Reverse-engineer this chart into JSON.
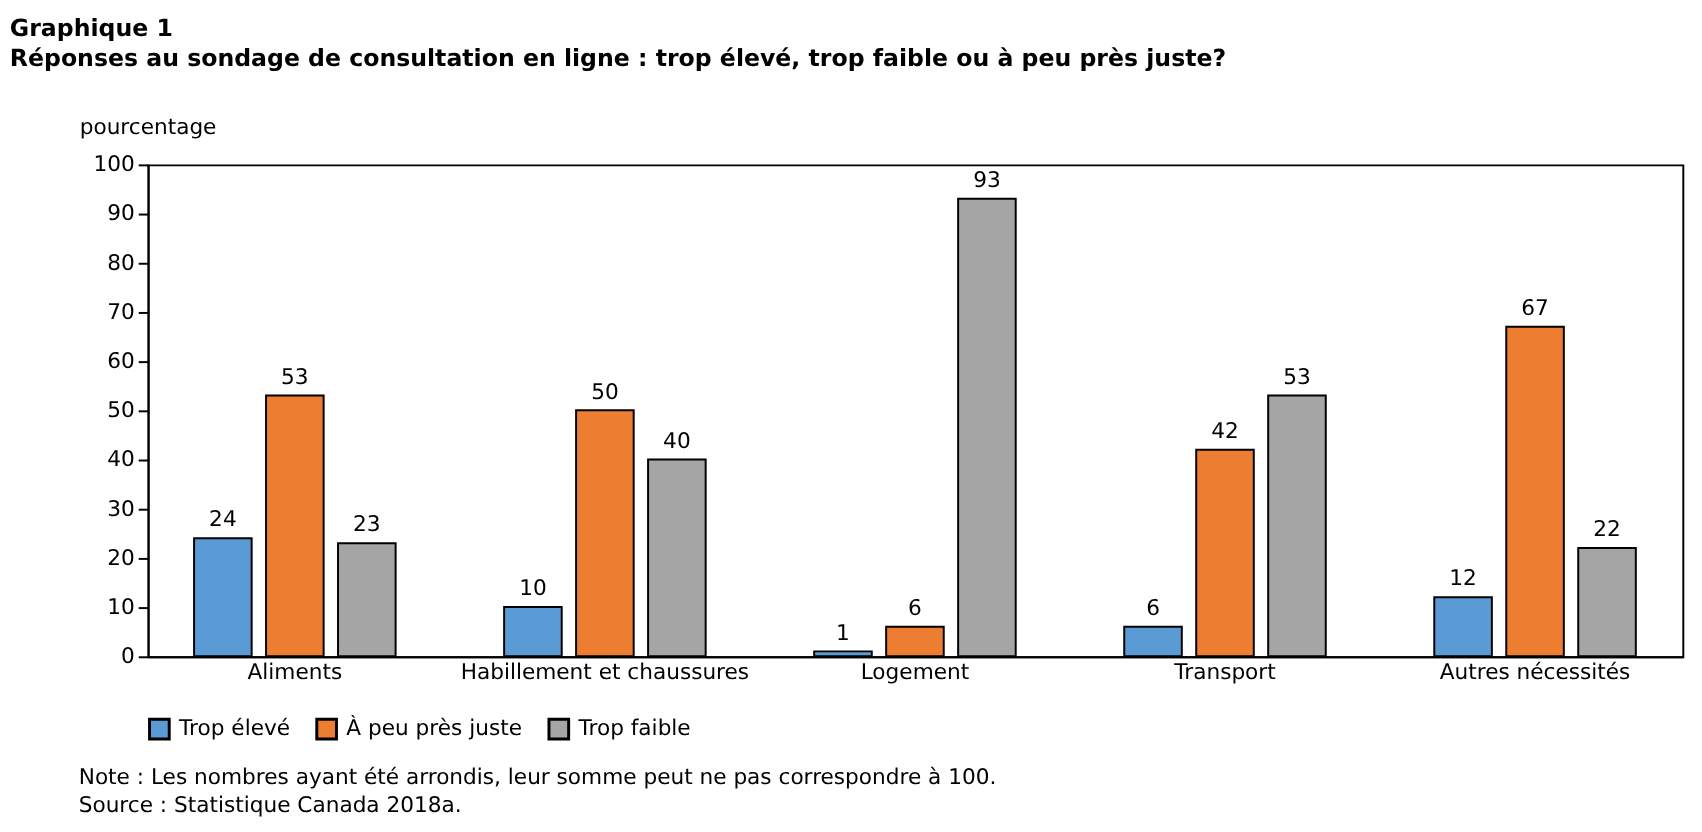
{
  "chart_data": {
    "type": "bar",
    "title": "Graphique 1",
    "subtitle": "Réponses au sondage de consultation en ligne : trop élevé, trop faible ou à peu près juste?",
    "ylabel": "pourcentage",
    "categories": [
      "Aliments",
      "Habillement et chaussures",
      "Logement",
      "Transport",
      "Autres nécessités"
    ],
    "series": [
      {
        "name": "Trop élevé",
        "color": "#5b9bd5",
        "values": [
          24,
          10,
          1,
          6,
          12
        ]
      },
      {
        "name": "À peu près juste",
        "color": "#ed7d31",
        "values": [
          53,
          50,
          6,
          42,
          67
        ]
      },
      {
        "name": "Trop faible",
        "color": "#a5a5a5",
        "values": [
          23,
          40,
          93,
          53,
          22
        ]
      }
    ],
    "ylim": [
      0,
      100
    ],
    "yticks": [
      0,
      10,
      20,
      30,
      40,
      50,
      60,
      70,
      80,
      90,
      100
    ],
    "grid": false,
    "legend": "bottom",
    "data_labels": true,
    "annotations": [
      "Note : Les nombres ayant été arrondis, leur somme peut ne pas correspondre à 100.",
      "Source : Statistique Canada 2018a."
    ]
  }
}
